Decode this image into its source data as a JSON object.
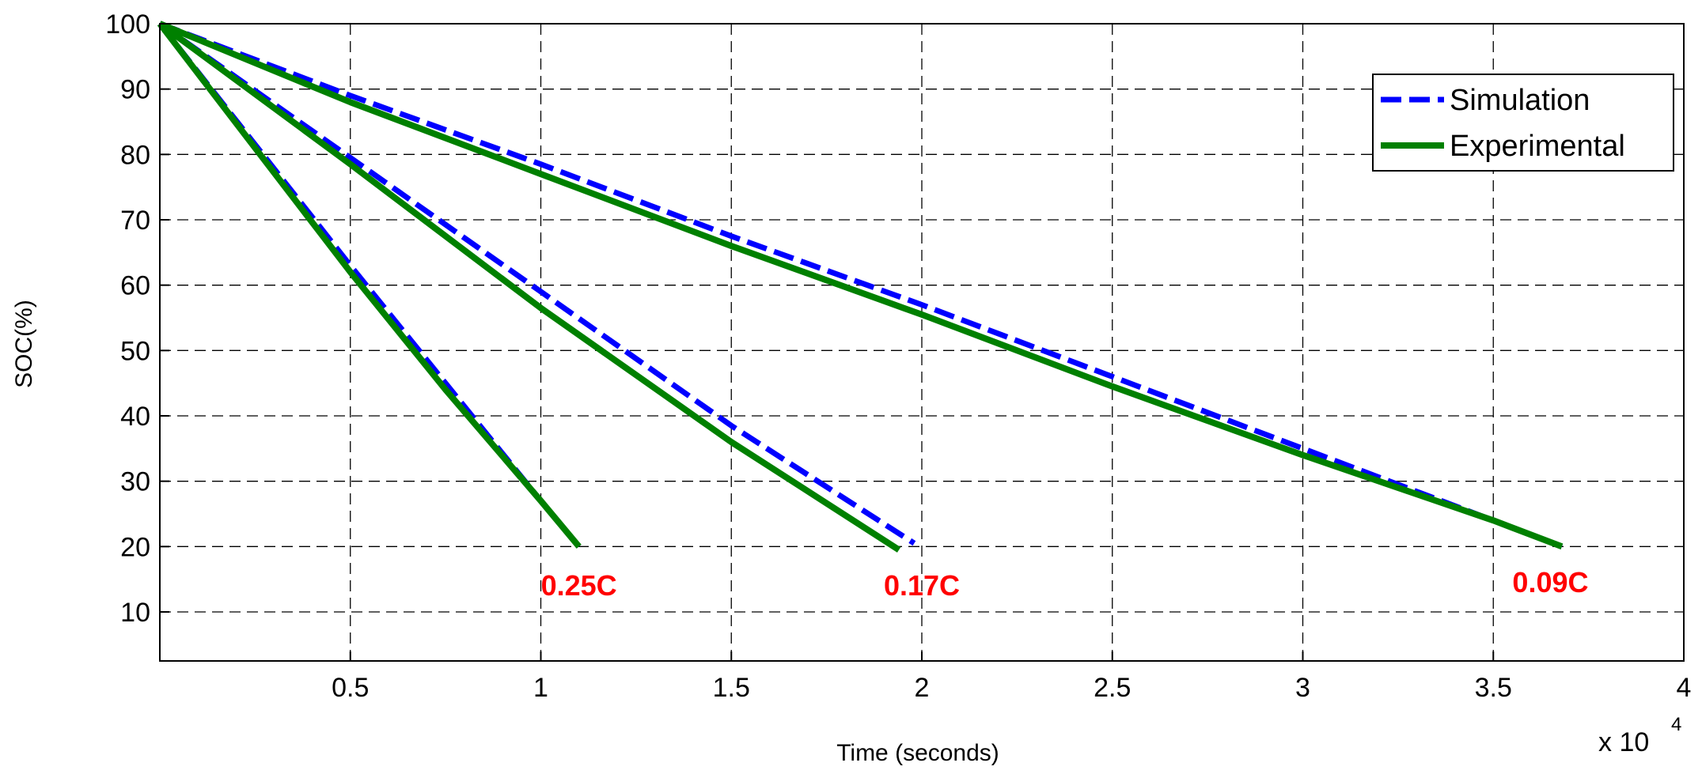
{
  "chart_data": {
    "type": "line",
    "xlabel": "Time (seconds)",
    "ylabel": "SOC(%)",
    "x_multiplier": "x 10",
    "x_multiplier_exp": "4",
    "xlim": [
      0,
      4
    ],
    "ylim": [
      2.5,
      100
    ],
    "xticks": [
      0.5,
      1,
      1.5,
      2,
      2.5,
      3,
      3.5,
      4
    ],
    "xtick_labels": [
      "0.5",
      "1",
      "1.5",
      "2",
      "2.5",
      "3",
      "3.5",
      "4"
    ],
    "yticks": [
      10,
      20,
      30,
      40,
      50,
      60,
      70,
      80,
      90,
      100
    ],
    "ytick_labels": [
      "10",
      "20",
      "30",
      "40",
      "50",
      "60",
      "70",
      "80",
      "90",
      "100"
    ],
    "grid": true,
    "legend_position": "top-right",
    "legend": [
      {
        "name": "Simulation",
        "style": "dashed",
        "color": "#0000ff"
      },
      {
        "name": "Experimental",
        "style": "solid",
        "color": "#008000"
      }
    ],
    "series": [
      {
        "name": "Simulation",
        "rate": "0.25C",
        "color": "#0000ff",
        "style": "dashed",
        "x": [
          0,
          0.25,
          0.5,
          0.75,
          1.0,
          1.1
        ],
        "y": [
          100,
          81.5,
          63,
          45,
          27,
          20
        ]
      },
      {
        "name": "Experimental",
        "rate": "0.25C",
        "color": "#008000",
        "style": "solid",
        "x": [
          0,
          0.25,
          0.5,
          0.75,
          1.0,
          1.1
        ],
        "y": [
          100,
          81,
          62,
          44,
          27,
          20
        ]
      },
      {
        "name": "Simulation",
        "rate": "0.17C",
        "color": "#0000ff",
        "style": "dashed",
        "x": [
          0,
          0.5,
          1.0,
          1.5,
          1.98
        ],
        "y": [
          100,
          79.5,
          59,
          38.5,
          20.5
        ]
      },
      {
        "name": "Experimental",
        "rate": "0.17C",
        "color": "#008000",
        "style": "solid",
        "x": [
          0,
          0.5,
          1.0,
          1.5,
          1.94
        ],
        "y": [
          100,
          78.5,
          56.5,
          36,
          19.5
        ]
      },
      {
        "name": "Simulation",
        "rate": "0.09C",
        "color": "#0000ff",
        "style": "dashed",
        "x": [
          0,
          0.5,
          1.0,
          1.5,
          2.0,
          2.5,
          3.0,
          3.5,
          3.68
        ],
        "y": [
          100,
          89,
          78.5,
          67.5,
          57,
          46,
          35,
          24,
          20
        ]
      },
      {
        "name": "Experimental",
        "rate": "0.09C",
        "color": "#008000",
        "style": "solid",
        "x": [
          0,
          0.5,
          1.0,
          1.5,
          2.0,
          2.5,
          3.0,
          3.5,
          3.68
        ],
        "y": [
          100,
          88,
          77,
          66,
          55.5,
          44.5,
          34,
          24,
          20
        ]
      }
    ],
    "annotations": [
      {
        "text": "0.25C",
        "x": 1.1,
        "y": 14,
        "color": "#ff0000"
      },
      {
        "text": "0.17C",
        "x": 2.0,
        "y": 14,
        "color": "#ff0000"
      },
      {
        "text": "0.09C",
        "x": 3.65,
        "y": 14.5,
        "color": "#ff0000"
      }
    ]
  }
}
